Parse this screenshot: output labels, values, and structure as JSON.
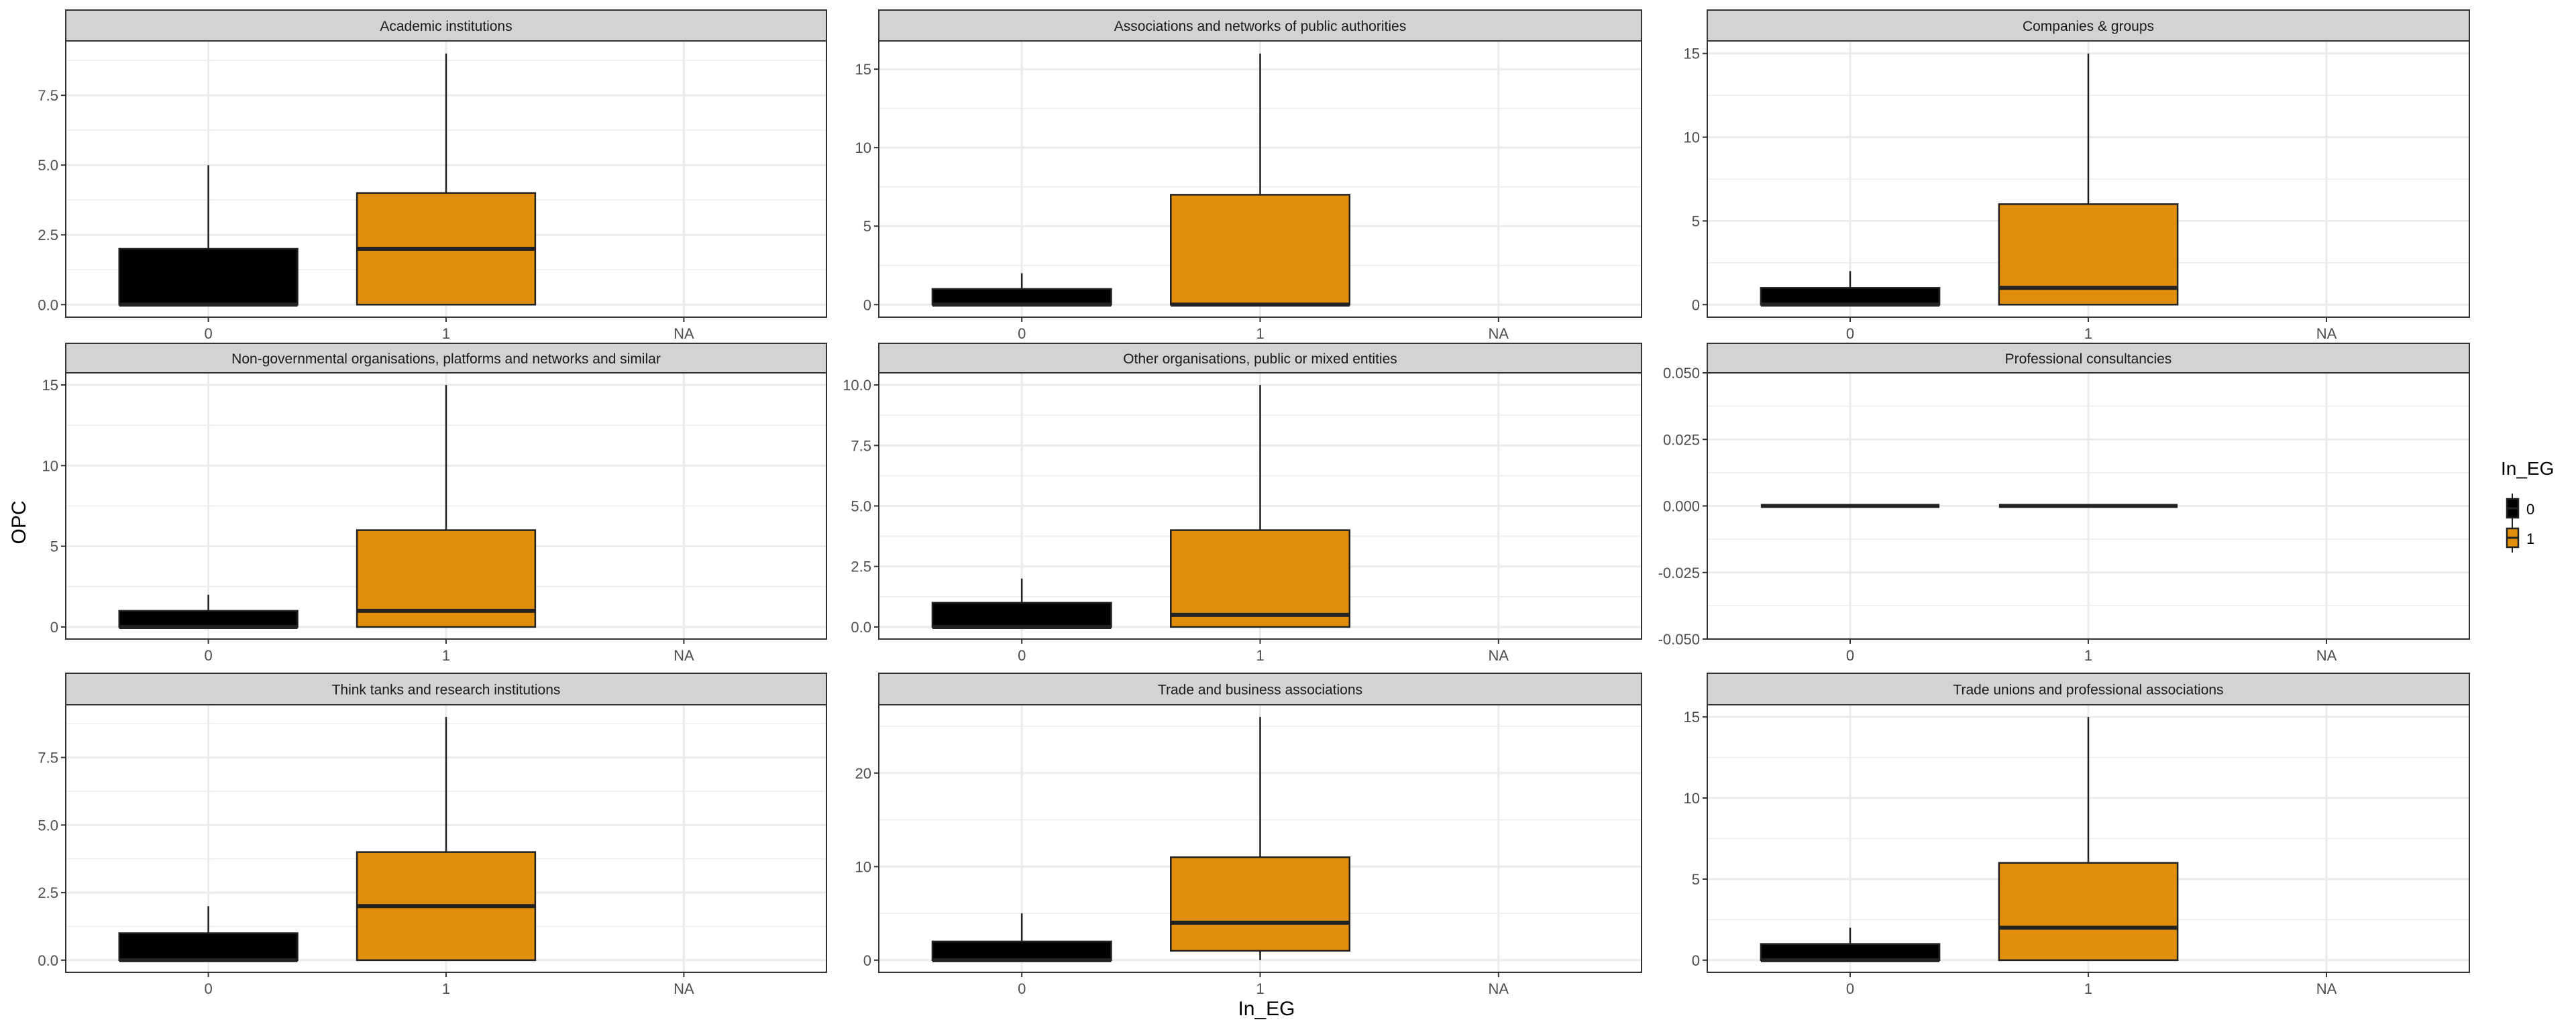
{
  "chart_data": {
    "type": "boxplot",
    "xlabel": "In_EG",
    "ylabel": "OPC",
    "categories": [
      "0",
      "1",
      "NA"
    ],
    "legend": {
      "title": "In_EG",
      "position": "right",
      "entries": [
        {
          "label": "0",
          "color": "#000000"
        },
        {
          "label": "1",
          "color": "#E08E0B"
        }
      ]
    },
    "colors": {
      "0": "#000000",
      "1": "#E08E0B",
      "strip": "#D3D3D3",
      "grid": "#EBEBEB"
    },
    "panels": [
      {
        "title": "Academic institutions",
        "ylim": [
          -0.45,
          9.45
        ],
        "yticks": [
          "0.0",
          "2.5",
          "5.0",
          "7.5"
        ],
        "ytick_values": [
          0,
          2.5,
          5,
          7.5
        ],
        "boxes": [
          {
            "group": "0",
            "lower": 0,
            "q1": 0,
            "median": 0,
            "q3": 2,
            "upper": 5
          },
          {
            "group": "1",
            "lower": 0,
            "q1": 0,
            "median": 2,
            "q3": 4,
            "upper": 9
          }
        ]
      },
      {
        "title": "Associations and networks of public authorities",
        "ylim": [
          -0.8,
          16.8
        ],
        "yticks": [
          "0",
          "5",
          "10",
          "15"
        ],
        "ytick_values": [
          0,
          5,
          10,
          15
        ],
        "boxes": [
          {
            "group": "0",
            "lower": 0,
            "q1": 0,
            "median": 0,
            "q3": 1,
            "upper": 2
          },
          {
            "group": "1",
            "lower": 0,
            "q1": 0,
            "median": 0,
            "q3": 7,
            "upper": 16
          }
        ]
      },
      {
        "title": "Companies & groups",
        "ylim": [
          -0.75,
          15.75
        ],
        "yticks": [
          "0",
          "5",
          "10",
          "15"
        ],
        "ytick_values": [
          0,
          5,
          10,
          15
        ],
        "boxes": [
          {
            "group": "0",
            "lower": 0,
            "q1": 0,
            "median": 0,
            "q3": 1,
            "upper": 2
          },
          {
            "group": "1",
            "lower": 0,
            "q1": 0,
            "median": 1,
            "q3": 6,
            "upper": 15
          }
        ]
      },
      {
        "title": "Non-governmental organisations, platforms and networks and similar",
        "ylim": [
          -0.75,
          15.75
        ],
        "yticks": [
          "0",
          "5",
          "10",
          "15"
        ],
        "ytick_values": [
          0,
          5,
          10,
          15
        ],
        "boxes": [
          {
            "group": "0",
            "lower": 0,
            "q1": 0,
            "median": 0,
            "q3": 1,
            "upper": 2
          },
          {
            "group": "1",
            "lower": 0,
            "q1": 0,
            "median": 1,
            "q3": 6,
            "upper": 15
          }
        ]
      },
      {
        "title": "Other organisations, public or mixed entities",
        "ylim": [
          -0.5,
          10.5
        ],
        "yticks": [
          "0.0",
          "2.5",
          "5.0",
          "7.5",
          "10.0"
        ],
        "ytick_values": [
          0,
          2.5,
          5,
          7.5,
          10
        ],
        "boxes": [
          {
            "group": "0",
            "lower": 0,
            "q1": 0,
            "median": 0,
            "q3": 1,
            "upper": 2
          },
          {
            "group": "1",
            "lower": 0,
            "q1": 0,
            "median": 0.5,
            "q3": 4,
            "upper": 10
          }
        ]
      },
      {
        "title": "Professional consultancies",
        "ylim": [
          -0.05,
          0.05
        ],
        "yticks": [
          "-0.050",
          "-0.025",
          "0.000",
          "0.025",
          "0.050"
        ],
        "ytick_values": [
          -0.05,
          -0.025,
          0,
          0.025,
          0.05
        ],
        "boxes": [
          {
            "group": "0",
            "lower": 0,
            "q1": 0,
            "median": 0,
            "q3": 0,
            "upper": 0
          },
          {
            "group": "1",
            "lower": 0,
            "q1": 0,
            "median": 0,
            "q3": 0,
            "upper": 0
          }
        ]
      },
      {
        "title": "Think tanks and research institutions",
        "ylim": [
          -0.45,
          9.45
        ],
        "yticks": [
          "0.0",
          "2.5",
          "5.0",
          "7.5"
        ],
        "ytick_values": [
          0,
          2.5,
          5,
          7.5
        ],
        "boxes": [
          {
            "group": "0",
            "lower": 0,
            "q1": 0,
            "median": 0,
            "q3": 1,
            "upper": 2
          },
          {
            "group": "1",
            "lower": 0,
            "q1": 0,
            "median": 2,
            "q3": 4,
            "upper": 9
          }
        ]
      },
      {
        "title": "Trade and business associations",
        "ylim": [
          -1.3,
          27.3
        ],
        "yticks": [
          "0",
          "10",
          "20"
        ],
        "ytick_values": [
          0,
          10,
          20
        ],
        "boxes": [
          {
            "group": "0",
            "lower": 0,
            "q1": 0,
            "median": 0,
            "q3": 2,
            "upper": 5
          },
          {
            "group": "1",
            "lower": 0,
            "q1": 1,
            "median": 4,
            "q3": 11,
            "upper": 26
          }
        ]
      },
      {
        "title": "Trade unions and professional associations",
        "ylim": [
          -0.75,
          15.75
        ],
        "yticks": [
          "0",
          "5",
          "10",
          "15"
        ],
        "ytick_values": [
          0,
          5,
          10,
          15
        ],
        "boxes": [
          {
            "group": "0",
            "lower": 0,
            "q1": 0,
            "median": 0,
            "q3": 1,
            "upper": 2
          },
          {
            "group": "1",
            "lower": 0,
            "q1": 0,
            "median": 2,
            "q3": 6,
            "upper": 15
          }
        ]
      }
    ]
  }
}
